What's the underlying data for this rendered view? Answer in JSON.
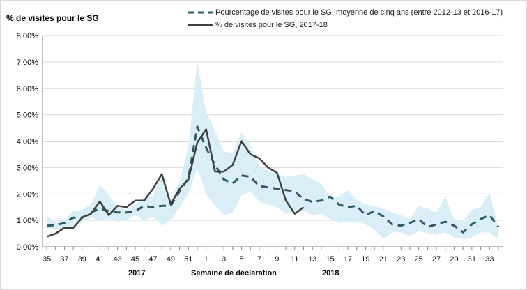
{
  "chart_data": {
    "type": "line",
    "ylabel": "% de visites pour le SG",
    "xlabel": "Semaine de déclaration",
    "year_labels": [
      "2017",
      "2018"
    ],
    "ylim": [
      0,
      8
    ],
    "y_ticks": [
      "0.00%",
      "1.00%",
      "2.00%",
      "3.00%",
      "4.00%",
      "5.00%",
      "6.00%",
      "7.00%",
      "8.00%"
    ],
    "x_weeks": [
      35,
      36,
      37,
      38,
      39,
      40,
      41,
      42,
      43,
      44,
      45,
      46,
      47,
      48,
      49,
      50,
      51,
      52,
      1,
      2,
      3,
      4,
      5,
      6,
      7,
      8,
      9,
      10,
      11,
      12,
      13,
      14,
      15,
      16,
      17,
      18,
      19,
      20,
      21,
      22,
      23,
      24,
      25,
      26,
      27,
      28,
      29,
      30,
      31,
      32,
      33,
      34
    ],
    "x_tick_labels": [
      "35",
      "37",
      "39",
      "41",
      "43",
      "45",
      "47",
      "49",
      "51",
      "1",
      "3",
      "5",
      "7",
      "9",
      "11",
      "13",
      "15",
      "17",
      "19",
      "21",
      "23",
      "25",
      "27",
      "29",
      "31",
      "33"
    ],
    "legend_position": "top",
    "grid": true,
    "range_band": {
      "upper": [
        1.15,
        0.95,
        1.0,
        1.35,
        1.4,
        1.6,
        2.35,
        1.95,
        1.5,
        1.4,
        1.6,
        1.9,
        1.9,
        2.7,
        1.8,
        2.45,
        3.8,
        7.0,
        5.1,
        4.4,
        3.6,
        3.55,
        4.35,
        3.85,
        3.05,
        2.9,
        2.75,
        2.65,
        2.7,
        2.75,
        2.55,
        2.4,
        1.9,
        1.9,
        2.15,
        1.8,
        1.6,
        1.55,
        1.45,
        1.3,
        1.2,
        1.05,
        1.55,
        1.45,
        1.3,
        1.9,
        1.05,
        0.95,
        1.4,
        1.5,
        2.05,
        0.75
      ],
      "lower": [
        0.65,
        0.65,
        0.7,
        0.8,
        0.9,
        1.1,
        1.0,
        1.05,
        0.95,
        1.0,
        1.2,
        1.0,
        1.15,
        0.8,
        1.0,
        1.5,
        2.0,
        3.0,
        2.0,
        1.55,
        1.2,
        1.3,
        1.95,
        2.1,
        1.7,
        1.6,
        1.5,
        1.25,
        1.3,
        1.35,
        1.2,
        1.25,
        1.05,
        0.9,
        0.95,
        0.95,
        0.85,
        0.65,
        0.3,
        0.55,
        0.55,
        0.4,
        0.6,
        0.5,
        0.45,
        0.55,
        0.35,
        0.3,
        0.35,
        0.55,
        0.55,
        0.25
      ],
      "color": "#daeef7"
    },
    "series": [
      {
        "name": "Pourcentage de visites pour le SG, moyenne de cinq ans (entre 2012-13 et 2016-17)",
        "style": "dashed",
        "color": "#2e5a64",
        "values": [
          0.8,
          0.82,
          0.9,
          1.1,
          1.1,
          1.3,
          1.45,
          1.35,
          1.3,
          1.3,
          1.35,
          1.55,
          1.5,
          1.55,
          1.55,
          2.1,
          2.6,
          4.55,
          3.75,
          3.1,
          2.55,
          2.4,
          2.7,
          2.65,
          2.3,
          2.25,
          2.2,
          2.15,
          2.1,
          1.8,
          1.7,
          1.75,
          1.9,
          1.6,
          1.5,
          1.55,
          1.2,
          1.35,
          1.15,
          0.85,
          0.8,
          0.9,
          1.05,
          0.75,
          0.85,
          0.95,
          0.8,
          0.55,
          0.85,
          1.05,
          1.2,
          0.75
        ]
      },
      {
        "name": "% de visites pour le SG, 2017-18",
        "style": "solid",
        "color": "#404040",
        "values": [
          0.38,
          0.5,
          0.72,
          0.72,
          1.1,
          1.25,
          1.72,
          1.2,
          1.55,
          1.5,
          1.75,
          1.75,
          2.2,
          2.75,
          1.6,
          2.2,
          2.55,
          3.95,
          4.45,
          2.85,
          2.85,
          3.1,
          4.0,
          3.5,
          3.35,
          3.0,
          2.8,
          1.75,
          1.25,
          1.5
        ]
      }
    ],
    "colors": {
      "grid": "#d9d9d9",
      "axis": "#808080"
    }
  }
}
